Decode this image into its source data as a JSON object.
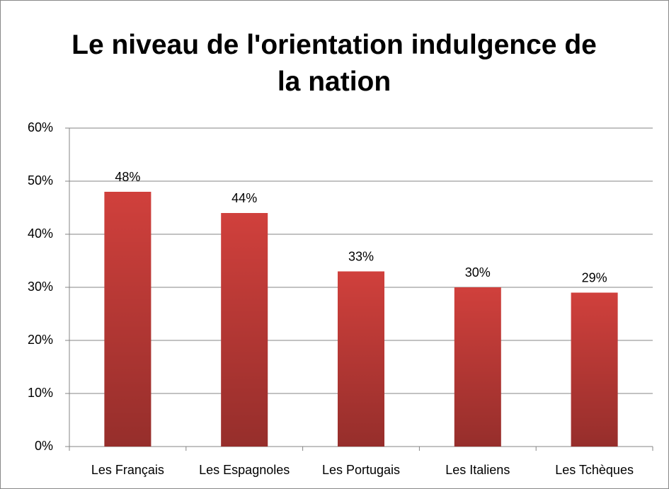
{
  "chart_data": {
    "type": "bar",
    "title": "Le niveau de l'orientation indulgence de la nation",
    "categories": [
      "Les Français",
      "Les Espagnoles",
      "Les Portugais",
      "Les Italiens",
      "Les Tchèques"
    ],
    "values": [
      48,
      44,
      33,
      30,
      29
    ],
    "value_labels": [
      "48%",
      "44%",
      "33%",
      "30%",
      "29%"
    ],
    "color": "#d0403c",
    "ylim": [
      0,
      60
    ],
    "yticks": [
      {
        "value": 0,
        "label": "0%"
      },
      {
        "value": 10,
        "label": "10%"
      },
      {
        "value": 20,
        "label": "20%"
      },
      {
        "value": 30,
        "label": "30%"
      },
      {
        "value": 40,
        "label": "40%"
      },
      {
        "value": 50,
        "label": "50%"
      },
      {
        "value": 60,
        "label": "60%"
      }
    ],
    "grid": true
  }
}
